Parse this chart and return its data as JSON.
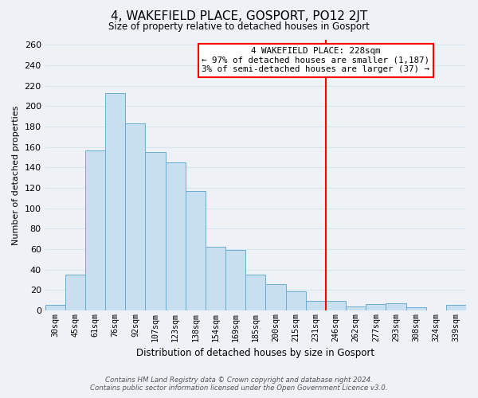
{
  "title": "4, WAKEFIELD PLACE, GOSPORT, PO12 2JT",
  "subtitle": "Size of property relative to detached houses in Gosport",
  "xlabel": "Distribution of detached houses by size in Gosport",
  "ylabel": "Number of detached properties",
  "bin_labels": [
    "30sqm",
    "45sqm",
    "61sqm",
    "76sqm",
    "92sqm",
    "107sqm",
    "123sqm",
    "138sqm",
    "154sqm",
    "169sqm",
    "185sqm",
    "200sqm",
    "215sqm",
    "231sqm",
    "246sqm",
    "262sqm",
    "277sqm",
    "293sqm",
    "308sqm",
    "324sqm",
    "339sqm"
  ],
  "bar_values": [
    5,
    35,
    157,
    213,
    183,
    155,
    145,
    117,
    62,
    59,
    35,
    26,
    19,
    9,
    9,
    4,
    6,
    7,
    3,
    0,
    5
  ],
  "bar_color": "#c8dff0",
  "bar_edge_color": "#6aadd5",
  "vline_x": 13.5,
  "vline_color": "red",
  "annotation_title": "4 WAKEFIELD PLACE: 228sqm",
  "annotation_line1": "← 97% of detached houses are smaller (1,187)",
  "annotation_line2": "3% of semi-detached houses are larger (37) →",
  "annotation_box_color": "#ffffff",
  "annotation_box_edge_color": "red",
  "ylim": [
    0,
    265
  ],
  "yticks": [
    0,
    20,
    40,
    60,
    80,
    100,
    120,
    140,
    160,
    180,
    200,
    220,
    240,
    260
  ],
  "footer_line1": "Contains HM Land Registry data © Crown copyright and database right 2024.",
  "footer_line2": "Contains public sector information licensed under the Open Government Licence v3.0.",
  "background_color": "#eef2f7",
  "grid_color": "#d8e4f0"
}
